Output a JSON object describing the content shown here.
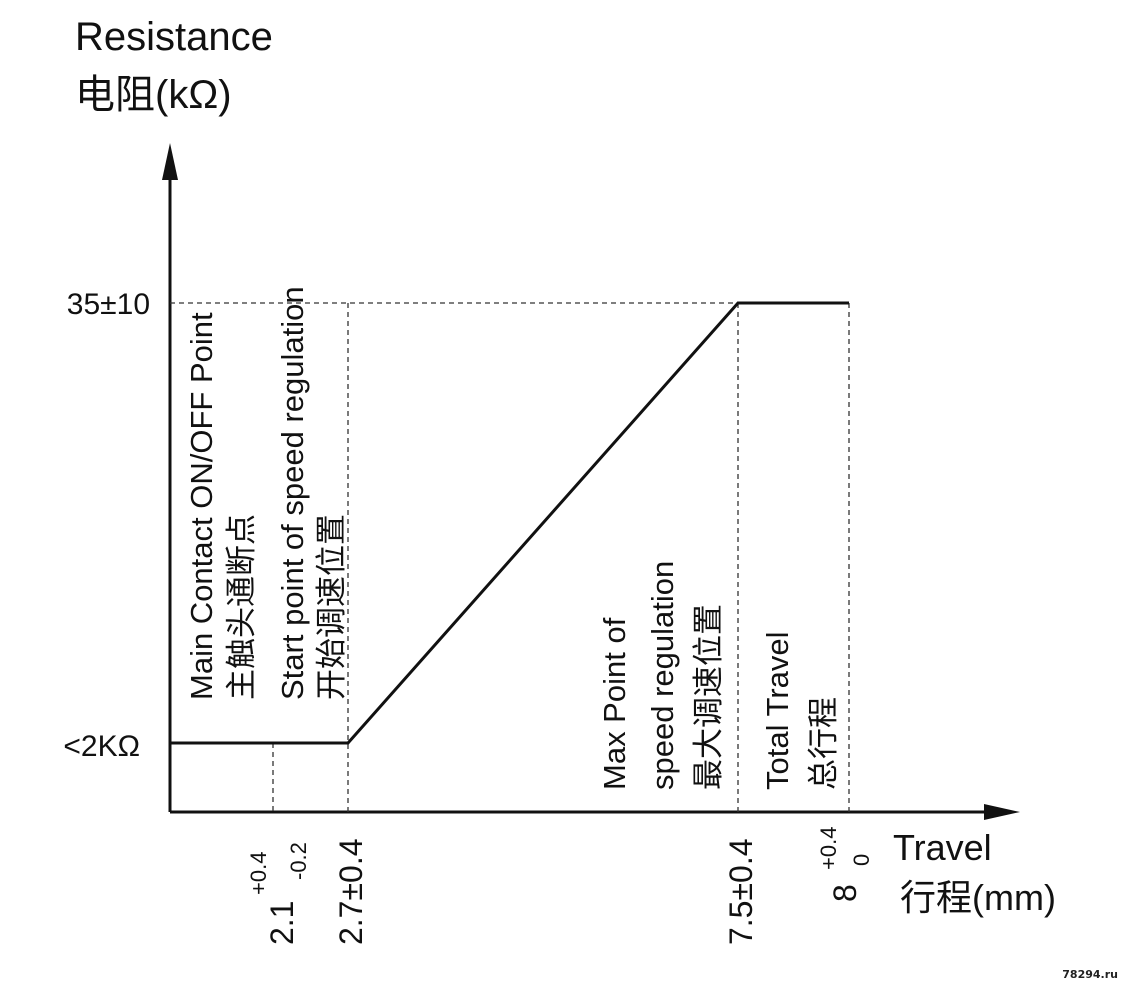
{
  "chart_data": {
    "type": "line",
    "y_axis": {
      "label": "Resistance",
      "label_cn": "电阻(kΩ)",
      "ticks": [
        "35±10",
        "<2KΩ"
      ]
    },
    "x_axis": {
      "label": "Travel",
      "label_cn": "行程(mm)",
      "ticks": [
        {
          "main": "2.1",
          "sup": "+0.4",
          "sub": "-0.2"
        },
        {
          "main": "2.7±0.4"
        },
        {
          "main": "7.5±0.4"
        },
        {
          "main": "8",
          "sup": "+0.4",
          "sub": "0"
        }
      ]
    },
    "series": [
      {
        "x": [
          0,
          2.7,
          7.5,
          8
        ],
        "y": [
          2,
          2,
          35,
          35
        ]
      }
    ],
    "markers": [
      {
        "x": 2.1,
        "line1": "Main Contact ON/OFF Point",
        "line2": "主触头通断点"
      },
      {
        "x": 2.7,
        "line1": "Start point of speed regulation",
        "line2": "开始调速位置"
      },
      {
        "x": 7.5,
        "line1": "Max Point of",
        "line2": "speed regulation",
        "line3": "最大调速位置"
      },
      {
        "x": 8,
        "line1": "Total Travel",
        "line2": "总行程"
      }
    ],
    "grid": false,
    "legend": "none"
  },
  "watermark": "78294.ru"
}
